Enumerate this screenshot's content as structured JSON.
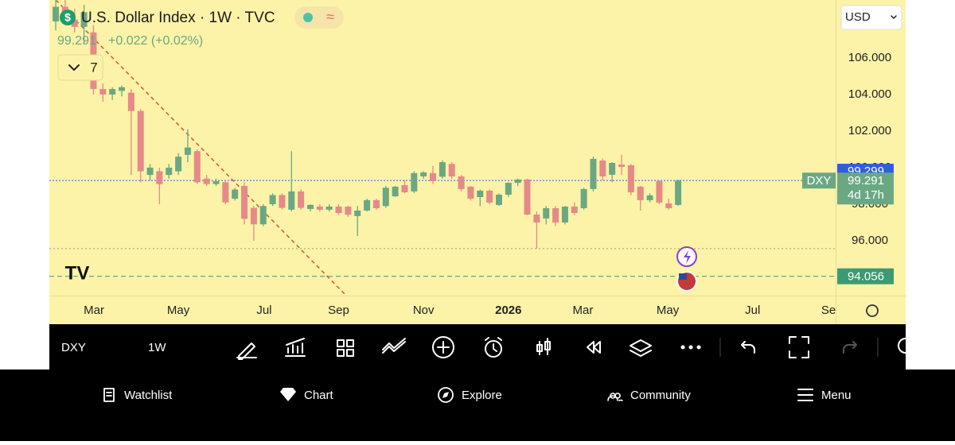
{
  "chart_data": {
    "type": "candlestick",
    "title": "U.S. Dollar Index · 1W · TVC",
    "last_value": 99.291,
    "change": "+0.022 (+0.02%)",
    "indicator_count": "7",
    "currency": "USD",
    "symbol_tag": "DXY",
    "countdown": "4d 17h",
    "up_color": "#6aa883",
    "down_color": "#e58a88",
    "open": [
      108.0,
      108.8,
      108.1,
      107.7,
      107.4,
      104.3,
      104.0,
      104.2,
      104.1,
      103.1,
      99.6,
      99.8,
      99.6,
      99.8,
      100.7,
      100.9,
      99.4,
      99.1,
      99.2,
      98.3,
      99.0,
      97.8,
      96.9,
      98.0,
      98.5,
      97.7,
      98.7,
      97.74,
      97.87,
      97.7,
      97.87,
      97.87,
      97.35,
      97.65,
      98.22,
      97.9,
      98.43,
      99.04,
      98.7,
      99.52,
      99.7,
      99.5,
      100.2,
      99.52,
      98.96,
      98.39,
      98.74,
      97.96,
      98.52,
      99.17,
      99.35,
      97.43,
      97.22,
      97.78,
      97.0,
      97.87,
      97.78,
      98.83,
      100.39,
      99.61,
      100.17,
      100.13,
      98.96,
      98.22,
      99.26,
      98.04,
      97.96
    ],
    "high": [
      109.3,
      109.3,
      108.7,
      108.9,
      107.8,
      104.6,
      104.4,
      104.5,
      104.3,
      103.2,
      100.2,
      100.0,
      100.2,
      100.8,
      102.1,
      101.0,
      99.6,
      99.4,
      99.3,
      98.9,
      99.2,
      97.9,
      98.0,
      98.6,
      98.6,
      100.9,
      98.8,
      98.0,
      98.0,
      98.0,
      98.0,
      97.9,
      97.9,
      98.3,
      98.3,
      99.0,
      99.0,
      99.3,
      99.8,
      99.8,
      100.1,
      100.4,
      100.3,
      99.6,
      99.0,
      98.8,
      98.8,
      98.6,
      99.2,
      99.4,
      99.4,
      97.6,
      97.9,
      97.9,
      97.9,
      98.1,
      98.9,
      100.6,
      100.5,
      100.3,
      100.7,
      100.2,
      99.0,
      98.6,
      99.3,
      98.3,
      99.35
    ],
    "low": [
      107.5,
      107.9,
      107.4,
      106.8,
      104.0,
      103.6,
      103.7,
      103.9,
      99.6,
      99.2,
      99.3,
      98.0,
      99.4,
      99.6,
      100.3,
      99.1,
      99.0,
      99.0,
      98.0,
      98.2,
      96.9,
      96.0,
      96.8,
      97.9,
      97.7,
      97.6,
      97.7,
      97.6,
      97.6,
      97.6,
      97.4,
      97.3,
      96.26,
      97.6,
      97.7,
      97.8,
      98.4,
      98.6,
      98.6,
      99.4,
      99.1,
      99.4,
      99.4,
      98.7,
      98.2,
      97.9,
      98.0,
      97.9,
      98.4,
      99.0,
      97.4,
      95.57,
      96.9,
      96.8,
      96.9,
      97.4,
      97.7,
      98.7,
      99.3,
      99.2,
      99.6,
      98.5,
      97.65,
      98.1,
      98.0,
      97.7,
      97.9
    ],
    "close": [
      108.8,
      108.1,
      107.7,
      108.5,
      104.3,
      104.0,
      104.3,
      104.4,
      103.1,
      99.8,
      100.0,
      99.1,
      100.0,
      100.6,
      101.1,
      99.2,
      99.1,
      99.26,
      98.1,
      98.8,
      97.2,
      96.9,
      97.9,
      98.5,
      97.8,
      98.7,
      97.8,
      97.96,
      97.7,
      97.87,
      97.52,
      97.43,
      97.65,
      98.22,
      97.78,
      98.9,
      98.96,
      98.65,
      99.7,
      99.74,
      99.26,
      100.3,
      99.52,
      98.83,
      98.3,
      98.74,
      98.09,
      98.52,
      99.17,
      99.35,
      97.43,
      97.0,
      97.78,
      97.0,
      97.87,
      97.52,
      98.83,
      100.48,
      99.52,
      100.26,
      100.04,
      98.65,
      98.22,
      98.48,
      98.09,
      97.78,
      99.291
    ],
    "xlim": [
      -0.68,
      82.7
    ],
    "ylim": [
      93.0,
      109.17
    ],
    "xticks": [
      {
        "value": 4.05,
        "label": "Mar"
      },
      {
        "value": 13.0,
        "label": "May"
      },
      {
        "value": 22.1,
        "label": "Jul"
      },
      {
        "value": 30.0,
        "label": "Sep"
      },
      {
        "value": 39.0,
        "label": "Nov"
      },
      {
        "value": 48.0,
        "label": "2026",
        "bold": true
      },
      {
        "value": 55.9,
        "label": "Mar"
      },
      {
        "value": 64.9,
        "label": "May"
      },
      {
        "value": 73.9,
        "label": "Jul"
      },
      {
        "value": 82.3,
        "label": "Sep"
      }
    ],
    "yticks": [
      {
        "value": 96,
        "label": "96.000"
      },
      {
        "value": 98,
        "label": "98.000"
      },
      {
        "value": 100,
        "label": "100.000"
      },
      {
        "value": 102,
        "label": "102.000"
      },
      {
        "value": 104,
        "label": "104.000"
      },
      {
        "value": 106,
        "label": "106.000"
      }
    ],
    "grid": false,
    "price_line": 99.299,
    "alert_line": 94.056,
    "low_line": 95.57,
    "trendline": {
      "x": [
        0,
        30.8
      ],
      "y": [
        109.17,
        93.0
      ]
    }
  },
  "toolbar": {
    "symbol": "DXY",
    "interval": "1W"
  },
  "nav": [
    "Watchlist",
    "Chart",
    "Explore",
    "Community",
    "Menu"
  ]
}
